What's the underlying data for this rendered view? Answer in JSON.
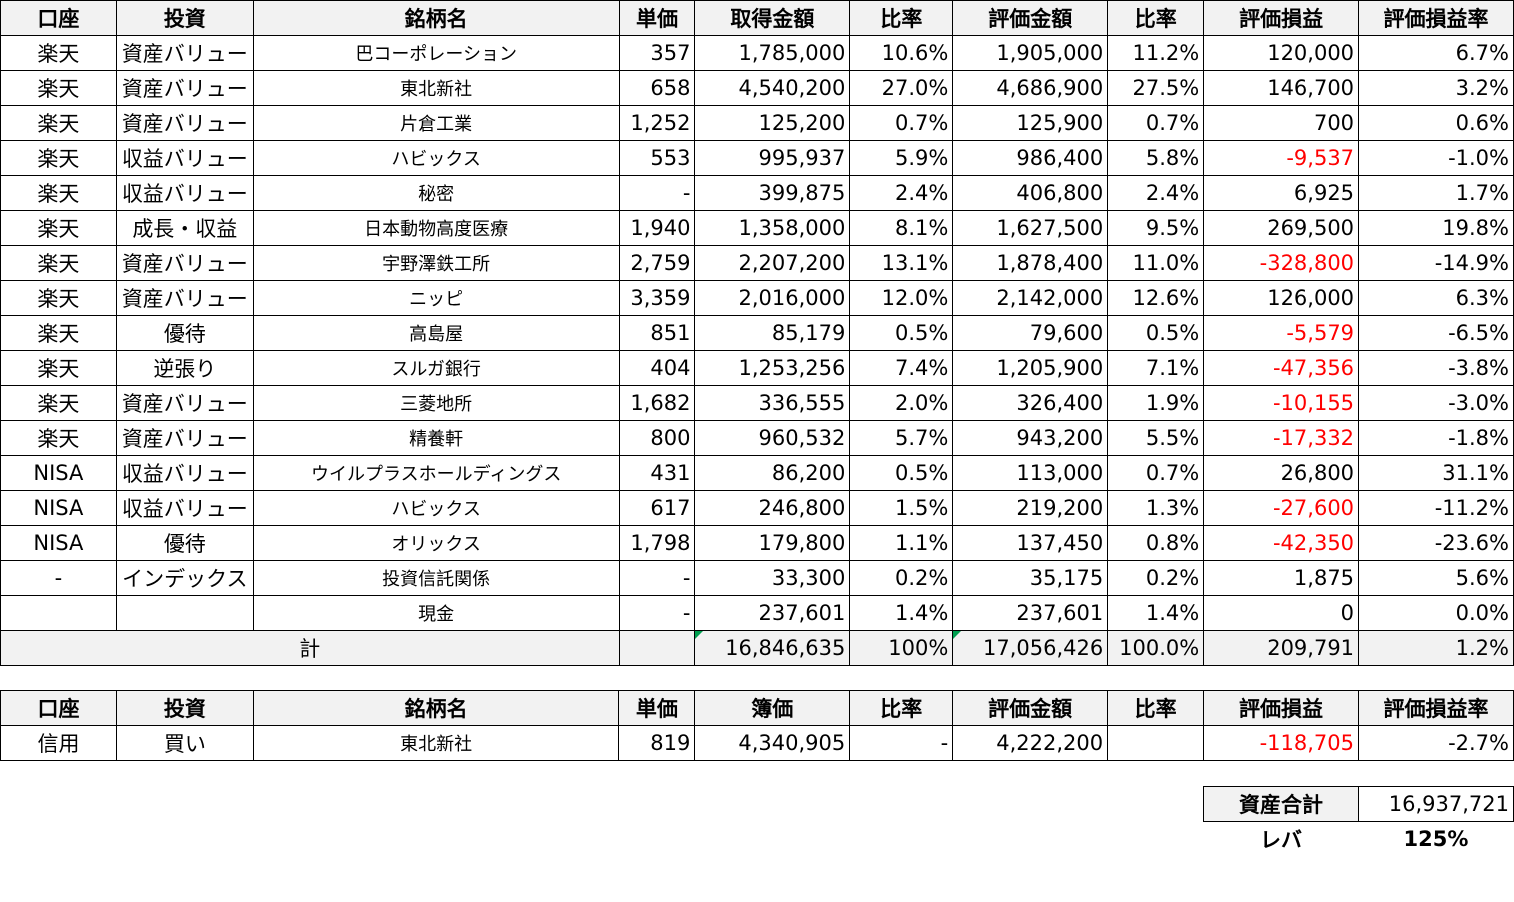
{
  "main_table": {
    "headers": [
      "口座",
      "投資",
      "銘柄名",
      "単価",
      "取得金額",
      "比率",
      "評価金額",
      "比率",
      "評価損益",
      "評価損益率"
    ],
    "rows": [
      {
        "account": "楽天",
        "strategy": "資産バリュー",
        "name": "巴コーポレーション",
        "unit_price": "357",
        "cost": "1,785,000",
        "cost_ratio": "10.6%",
        "value": "1,905,000",
        "value_ratio": "11.2%",
        "pl": "120,000",
        "pl_rate": "6.7%"
      },
      {
        "account": "楽天",
        "strategy": "資産バリュー",
        "name": "東北新社",
        "unit_price": "658",
        "cost": "4,540,200",
        "cost_ratio": "27.0%",
        "value": "4,686,900",
        "value_ratio": "27.5%",
        "pl": "146,700",
        "pl_rate": "3.2%"
      },
      {
        "account": "楽天",
        "strategy": "資産バリュー",
        "name": "片倉工業",
        "unit_price": "1,252",
        "cost": "125,200",
        "cost_ratio": "0.7%",
        "value": "125,900",
        "value_ratio": "0.7%",
        "pl": "700",
        "pl_rate": "0.6%"
      },
      {
        "account": "楽天",
        "strategy": "収益バリュー",
        "name": "ハビックス",
        "unit_price": "553",
        "cost": "995,937",
        "cost_ratio": "5.9%",
        "value": "986,400",
        "value_ratio": "5.8%",
        "pl": "-9,537",
        "pl_rate": "-1.0%"
      },
      {
        "account": "楽天",
        "strategy": "収益バリュー",
        "name": "秘密",
        "unit_price": "-",
        "cost": "399,875",
        "cost_ratio": "2.4%",
        "value": "406,800",
        "value_ratio": "2.4%",
        "pl": "6,925",
        "pl_rate": "1.7%"
      },
      {
        "account": "楽天",
        "strategy": "成長・収益",
        "name": "日本動物高度医療",
        "unit_price": "1,940",
        "cost": "1,358,000",
        "cost_ratio": "8.1%",
        "value": "1,627,500",
        "value_ratio": "9.5%",
        "pl": "269,500",
        "pl_rate": "19.8%"
      },
      {
        "account": "楽天",
        "strategy": "資産バリュー",
        "name": "宇野澤鉄工所",
        "unit_price": "2,759",
        "cost": "2,207,200",
        "cost_ratio": "13.1%",
        "value": "1,878,400",
        "value_ratio": "11.0%",
        "pl": "-328,800",
        "pl_rate": "-14.9%"
      },
      {
        "account": "楽天",
        "strategy": "資産バリュー",
        "name": "ニッピ",
        "unit_price": "3,359",
        "cost": "2,016,000",
        "cost_ratio": "12.0%",
        "value": "2,142,000",
        "value_ratio": "12.6%",
        "pl": "126,000",
        "pl_rate": "6.3%"
      },
      {
        "account": "楽天",
        "strategy": "優待",
        "name": "高島屋",
        "unit_price": "851",
        "cost": "85,179",
        "cost_ratio": "0.5%",
        "value": "79,600",
        "value_ratio": "0.5%",
        "pl": "-5,579",
        "pl_rate": "-6.5%"
      },
      {
        "account": "楽天",
        "strategy": "逆張り",
        "name": "スルガ銀行",
        "unit_price": "404",
        "cost": "1,253,256",
        "cost_ratio": "7.4%",
        "value": "1,205,900",
        "value_ratio": "7.1%",
        "pl": "-47,356",
        "pl_rate": "-3.8%"
      },
      {
        "account": "楽天",
        "strategy": "資産バリュー",
        "name": "三菱地所",
        "unit_price": "1,682",
        "cost": "336,555",
        "cost_ratio": "2.0%",
        "value": "326,400",
        "value_ratio": "1.9%",
        "pl": "-10,155",
        "pl_rate": "-3.0%"
      },
      {
        "account": "楽天",
        "strategy": "資産バリュー",
        "name": "精養軒",
        "unit_price": "800",
        "cost": "960,532",
        "cost_ratio": "5.7%",
        "value": "943,200",
        "value_ratio": "5.5%",
        "pl": "-17,332",
        "pl_rate": "-1.8%"
      },
      {
        "account": "NISA",
        "strategy": "収益バリュー",
        "name": "ウイルプラスホールディングス",
        "unit_price": "431",
        "cost": "86,200",
        "cost_ratio": "0.5%",
        "value": "113,000",
        "value_ratio": "0.7%",
        "pl": "26,800",
        "pl_rate": "31.1%"
      },
      {
        "account": "NISA",
        "strategy": "収益バリュー",
        "name": "ハビックス",
        "unit_price": "617",
        "cost": "246,800",
        "cost_ratio": "1.5%",
        "value": "219,200",
        "value_ratio": "1.3%",
        "pl": "-27,600",
        "pl_rate": "-11.2%"
      },
      {
        "account": "NISA",
        "strategy": "優待",
        "name": "オリックス",
        "unit_price": "1,798",
        "cost": "179,800",
        "cost_ratio": "1.1%",
        "value": "137,450",
        "value_ratio": "0.8%",
        "pl": "-42,350",
        "pl_rate": "-23.6%"
      },
      {
        "account": "-",
        "strategy": "インデックス",
        "name": "投資信託関係",
        "unit_price": "-",
        "cost": "33,300",
        "cost_ratio": "0.2%",
        "value": "35,175",
        "value_ratio": "0.2%",
        "pl": "1,875",
        "pl_rate": "5.6%"
      },
      {
        "account": "",
        "strategy": "",
        "name": "現金",
        "unit_price": "-",
        "cost": "237,601",
        "cost_ratio": "1.4%",
        "value": "237,601",
        "value_ratio": "1.4%",
        "pl": "0",
        "pl_rate": "0.0%"
      }
    ],
    "total": {
      "label": "計",
      "cost": "16,846,635",
      "cost_ratio": "100%",
      "value": "17,056,426",
      "value_ratio": "100.0%",
      "pl": "209,791",
      "pl_rate": "1.2%"
    }
  },
  "margin_table": {
    "headers": [
      "口座",
      "投資",
      "銘柄名",
      "単価",
      "簿価",
      "比率",
      "評価金額",
      "比率",
      "評価損益",
      "評価損益率"
    ],
    "rows": [
      {
        "account": "信用",
        "strategy": "買い",
        "name": "東北新社",
        "unit_price": "819",
        "cost": "4,340,905",
        "cost_ratio": "-",
        "value": "4,222,200",
        "value_ratio": "",
        "pl": "-118,705",
        "pl_rate": "-2.7%"
      }
    ]
  },
  "summary": {
    "total_assets_label": "資産合計",
    "total_assets": "16,937,721",
    "leverage_label": "レバ",
    "leverage": "125%"
  },
  "colors": {
    "negative": "#ff0000",
    "header_bg": "#f2f2f2",
    "flag": "#00a050"
  }
}
